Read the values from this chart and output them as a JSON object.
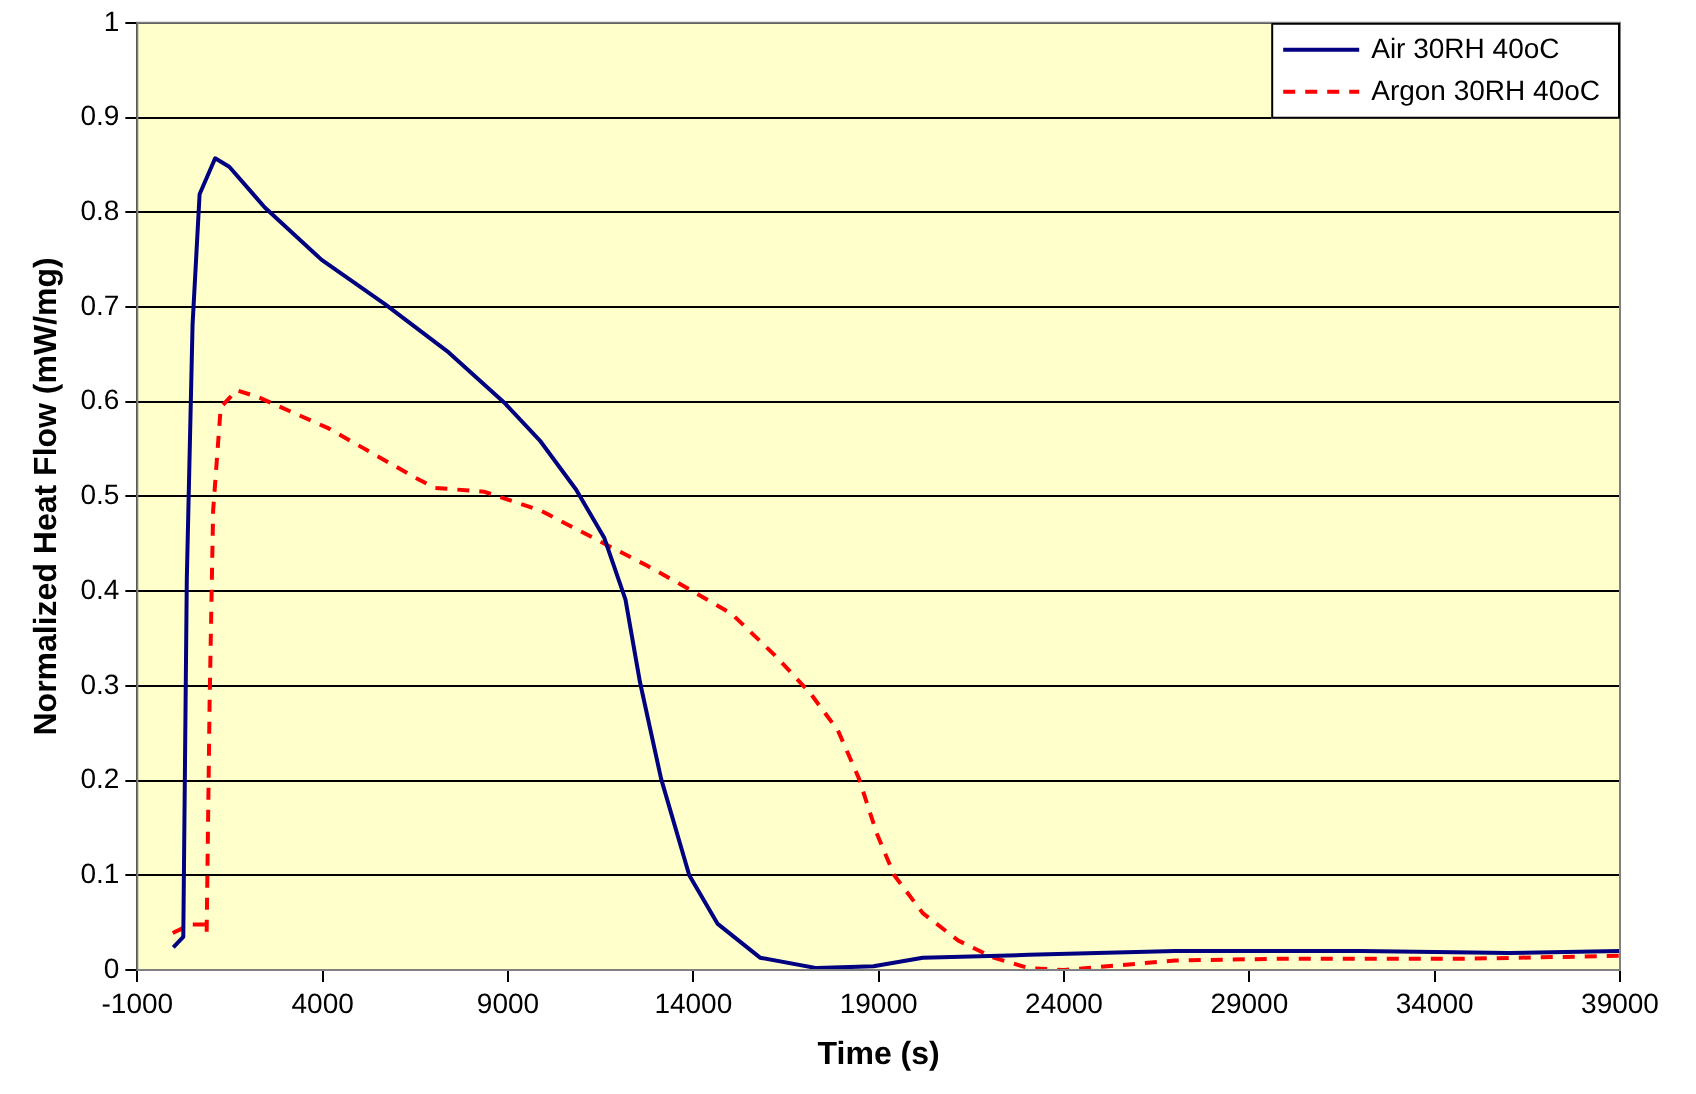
{
  "chart_data": {
    "type": "line",
    "xlabel": "Time (s)",
    "ylabel": "Normalized Heat Flow (mW/mg)",
    "xlim": [
      -1000,
      39000
    ],
    "xticks": [
      -1000,
      4000,
      9000,
      14000,
      19000,
      24000,
      29000,
      34000,
      39000
    ],
    "ylim": [
      0,
      1
    ],
    "yticks": [
      0,
      0.1,
      0.2,
      0.3,
      0.4,
      0.5,
      0.6,
      0.7,
      0.8,
      0.9,
      1
    ],
    "grid": "y",
    "legend": "top right",
    "marker": "none",
    "series": [
      {
        "name": "Air 30RH 40oC",
        "color": "#000080",
        "line_style": "solid",
        "x": [
          -30,
          240,
          335,
          490,
          680,
          1100,
          1480,
          2440,
          3965,
          5680,
          7400,
          8925,
          9880,
          10840,
          11600,
          12170,
          12560,
          13130,
          13890,
          14650,
          15800,
          17330,
          18860,
          20190,
          23050,
          27000,
          32000,
          36000,
          39000
        ],
        "values": [
          0.024,
          0.035,
          0.413,
          0.681,
          0.819,
          0.857,
          0.848,
          0.805,
          0.75,
          0.703,
          0.652,
          0.598,
          0.558,
          0.507,
          0.456,
          0.391,
          0.304,
          0.202,
          0.1,
          0.049,
          0.013,
          0.002,
          0.004,
          0.013,
          0.016,
          0.02,
          0.02,
          0.018,
          0.02
        ]
      },
      {
        "name": "Argon 30RH 40oC",
        "color": "#ff0000",
        "line_style": "dashed",
        "x": [
          -45,
          430,
          815,
          870,
          950,
          1045,
          1250,
          1675,
          2250,
          4150,
          6445,
          7020,
          8350,
          9880,
          12745,
          13890,
          15035,
          16180,
          17140,
          17900,
          18470,
          18950,
          19420,
          20190,
          21150,
          22100,
          23050,
          24000,
          27000,
          30000,
          35000,
          39000
        ],
        "values": [
          0.039,
          0.048,
          0.048,
          0.039,
          0.282,
          0.485,
          0.594,
          0.612,
          0.605,
          0.572,
          0.521,
          0.509,
          0.505,
          0.485,
          0.427,
          0.402,
          0.376,
          0.333,
          0.293,
          0.253,
          0.202,
          0.144,
          0.1,
          0.06,
          0.031,
          0.013,
          0.002,
          0.0,
          0.01,
          0.012,
          0.012,
          0.015
        ]
      }
    ]
  }
}
